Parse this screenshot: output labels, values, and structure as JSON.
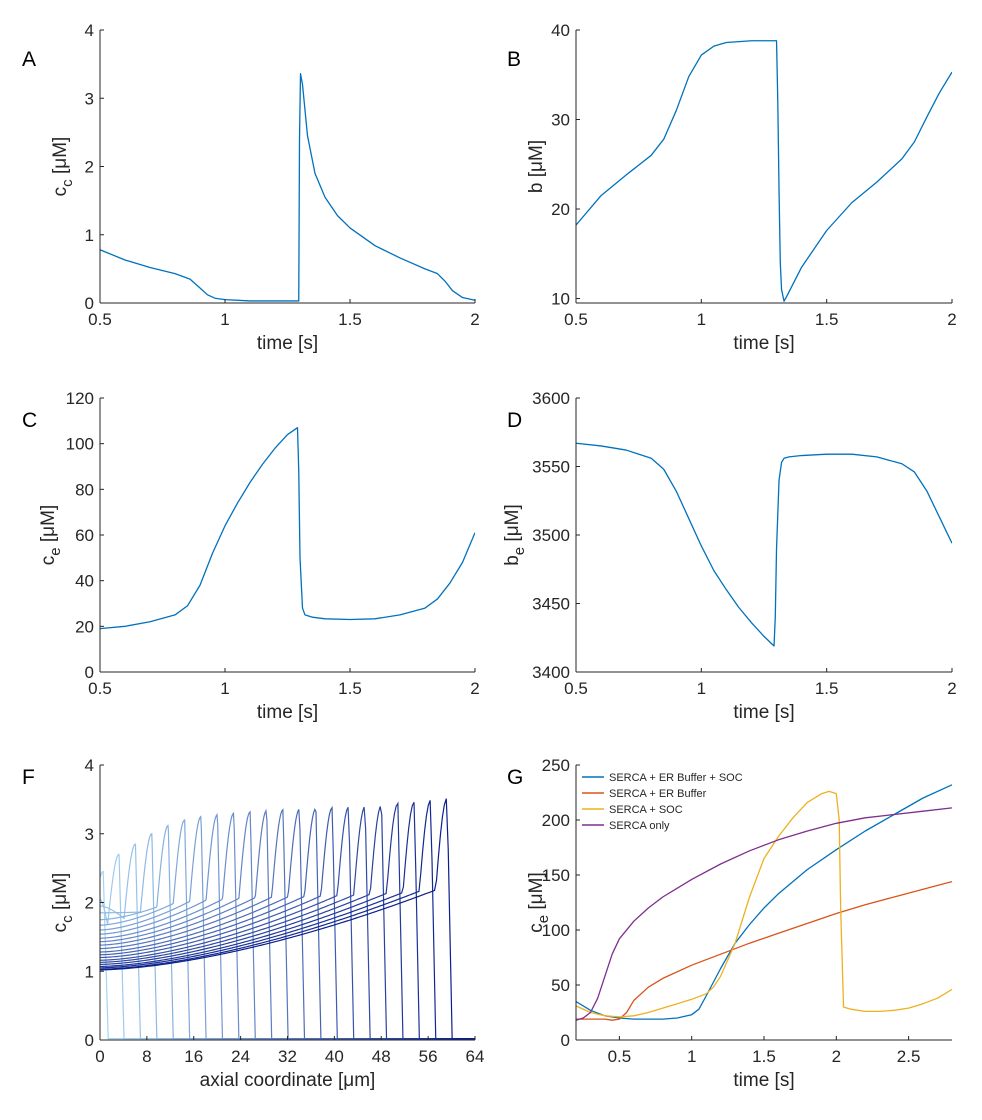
{
  "chart_data": [
    {
      "id": "A",
      "type": "line",
      "panel_label": "A",
      "xlabel": "time [s]",
      "ylabel": "c",
      "ylabel_sub": "c",
      "ylabel_unit": "[μM]",
      "xlim": [
        0.5,
        2
      ],
      "ylim": [
        0,
        4
      ],
      "xticks": [
        0.5,
        1,
        1.5,
        2
      ],
      "xticklabels": [
        "0.5",
        "1",
        "1.5",
        "2"
      ],
      "yticks": [
        0,
        1,
        2,
        3,
        4
      ],
      "yticklabels": [
        "0",
        "1",
        "2",
        "3",
        "4"
      ],
      "series": [
        {
          "color": "#0072BD",
          "x": [
            0.5,
            0.6,
            0.7,
            0.8,
            0.86,
            0.9,
            0.93,
            0.96,
            1.0,
            1.1,
            1.2,
            1.295,
            1.298,
            1.302,
            1.31,
            1.33,
            1.36,
            1.4,
            1.45,
            1.5,
            1.6,
            1.7,
            1.8,
            1.85,
            1.88,
            1.91,
            1.95,
            2.0
          ],
          "y": [
            0.78,
            0.63,
            0.52,
            0.43,
            0.35,
            0.22,
            0.12,
            0.07,
            0.05,
            0.03,
            0.03,
            0.03,
            2.4,
            3.36,
            3.2,
            2.45,
            1.9,
            1.55,
            1.28,
            1.1,
            0.84,
            0.66,
            0.5,
            0.43,
            0.32,
            0.18,
            0.08,
            0.04
          ]
        }
      ]
    },
    {
      "id": "B",
      "type": "line",
      "panel_label": "B",
      "xlabel": "time [s]",
      "ylabel": "b",
      "ylabel_sub": "",
      "ylabel_unit": "[μM]",
      "xlim": [
        0.5,
        2
      ],
      "ylim": [
        9.5,
        40
      ],
      "xticks": [
        0.5,
        1,
        1.5,
        2
      ],
      "xticklabels": [
        "0.5",
        "1",
        "1.5",
        "2"
      ],
      "yticks": [
        10,
        20,
        30,
        40
      ],
      "yticklabels": [
        "10",
        "20",
        "30",
        "40"
      ],
      "series": [
        {
          "color": "#0072BD",
          "x": [
            0.5,
            0.6,
            0.7,
            0.8,
            0.85,
            0.9,
            0.95,
            1.0,
            1.05,
            1.1,
            1.2,
            1.3,
            1.305,
            1.31,
            1.315,
            1.32,
            1.33,
            1.34,
            1.4,
            1.5,
            1.6,
            1.7,
            1.8,
            1.85,
            1.9,
            1.95,
            2.0
          ],
          "y": [
            18.2,
            21.5,
            23.8,
            26.0,
            27.8,
            31.0,
            34.8,
            37.2,
            38.2,
            38.6,
            38.8,
            38.8,
            32.0,
            22.0,
            14.0,
            11.0,
            9.7,
            10.2,
            13.5,
            17.6,
            20.7,
            23.0,
            25.6,
            27.5,
            30.3,
            33.0,
            35.3
          ]
        }
      ]
    },
    {
      "id": "C",
      "type": "line",
      "panel_label": "C",
      "xlabel": "time [s]",
      "ylabel": "c",
      "ylabel_sub": "e",
      "ylabel_unit": "[μM]",
      "xlim": [
        0.5,
        2
      ],
      "ylim": [
        0,
        120
      ],
      "xticks": [
        0.5,
        1,
        1.5,
        2
      ],
      "xticklabels": [
        "0.5",
        "1",
        "1.5",
        "2"
      ],
      "yticks": [
        0,
        20,
        40,
        60,
        80,
        100,
        120
      ],
      "yticklabels": [
        "0",
        "20",
        "40",
        "60",
        "80",
        "100",
        "120"
      ],
      "series": [
        {
          "color": "#0072BD",
          "x": [
            0.5,
            0.6,
            0.7,
            0.8,
            0.85,
            0.9,
            0.95,
            1.0,
            1.05,
            1.1,
            1.15,
            1.2,
            1.25,
            1.29,
            1.295,
            1.3,
            1.31,
            1.32,
            1.35,
            1.4,
            1.5,
            1.6,
            1.7,
            1.8,
            1.85,
            1.9,
            1.95,
            2.0
          ],
          "y": [
            19,
            20,
            22,
            25,
            29,
            38,
            52,
            64,
            74,
            83,
            91,
            98,
            104,
            107,
            88,
            50,
            28,
            25,
            24,
            23.3,
            23,
            23.3,
            25,
            28,
            32,
            39,
            48,
            61
          ]
        }
      ]
    },
    {
      "id": "D",
      "type": "line",
      "panel_label": "D",
      "xlabel": "time [s]",
      "ylabel": "b",
      "ylabel_sub": "e",
      "ylabel_unit": "[μM]",
      "xlim": [
        0.5,
        2
      ],
      "ylim": [
        3400,
        3600
      ],
      "xticks": [
        0.5,
        1,
        1.5,
        2
      ],
      "xticklabels": [
        "0.5",
        "1",
        "1.5",
        "2"
      ],
      "yticks": [
        3400,
        3450,
        3500,
        3550,
        3600
      ],
      "yticklabels": [
        "3400",
        "3450",
        "3500",
        "3550",
        "3600"
      ],
      "series": [
        {
          "color": "#0072BD",
          "x": [
            0.5,
            0.6,
            0.7,
            0.8,
            0.85,
            0.9,
            0.95,
            1.0,
            1.05,
            1.1,
            1.15,
            1.2,
            1.25,
            1.29,
            1.295,
            1.3,
            1.31,
            1.32,
            1.33,
            1.35,
            1.4,
            1.5,
            1.6,
            1.7,
            1.8,
            1.85,
            1.9,
            1.95,
            2.0
          ],
          "y": [
            3567,
            3565,
            3562,
            3556,
            3548,
            3532,
            3512,
            3492,
            3474,
            3460,
            3447,
            3436,
            3426,
            3419,
            3440,
            3490,
            3540,
            3553,
            3556,
            3557,
            3558,
            3559,
            3559,
            3557,
            3552,
            3546,
            3532,
            3513,
            3494
          ]
        }
      ]
    },
    {
      "id": "F",
      "type": "line",
      "panel_label": "F",
      "xlabel": "axial coordinate [μm]",
      "ylabel": "c",
      "ylabel_sub": "c",
      "ylabel_unit": "[μM]",
      "xlim": [
        0,
        64
      ],
      "ylim": [
        0,
        4
      ],
      "xticks": [
        0,
        8,
        16,
        24,
        32,
        40,
        48,
        56,
        64
      ],
      "xticklabels": [
        "0",
        "8",
        "16",
        "24",
        "32",
        "40",
        "48",
        "56",
        "64"
      ],
      "yticks": [
        0,
        1,
        2,
        3,
        4
      ],
      "yticklabels": [
        "0",
        "1",
        "2",
        "3",
        "4"
      ],
      "color_start": "#a6d3f2",
      "color_end": "#0b1f8c",
      "wavefronts": {
        "front_x": [
          0.8,
          3.5,
          6.3,
          9.1,
          11.9,
          14.7,
          17.5,
          20.3,
          23.1,
          25.9,
          28.7,
          31.5,
          34.3,
          37.1,
          39.9,
          42.7,
          45.5,
          48.3,
          51.1,
          53.9,
          56.7,
          59.5
        ],
        "peak_c": [
          2.45,
          2.7,
          2.85,
          3.0,
          3.12,
          3.2,
          3.25,
          3.28,
          3.3,
          3.32,
          3.34,
          3.35,
          3.36,
          3.37,
          3.38,
          3.39,
          3.4,
          3.42,
          3.44,
          3.46,
          3.49,
          3.52
        ],
        "base_c_at_0": [
          2.2,
          2.05,
          1.95,
          1.85,
          1.75,
          1.67,
          1.6,
          1.54,
          1.48,
          1.43,
          1.38,
          1.33,
          1.28,
          1.24,
          1.2,
          1.16,
          1.13,
          1.1,
          1.07,
          1.05,
          1.03,
          1.02
        ]
      }
    },
    {
      "id": "G",
      "type": "line",
      "panel_label": "G",
      "xlabel": "time [s]",
      "ylabel": "c",
      "ylabel_sub": "e",
      "ylabel_unit": "[μM]",
      "xlim": [
        0.2,
        2.8
      ],
      "ylim": [
        0,
        250
      ],
      "xticks": [
        0.5,
        1,
        1.5,
        2,
        2.5
      ],
      "xticklabels": [
        "0.5",
        "1",
        "1.5",
        "2",
        "2.5"
      ],
      "yticks": [
        0,
        50,
        100,
        150,
        200,
        250
      ],
      "yticklabels": [
        "0",
        "50",
        "100",
        "150",
        "200",
        "250"
      ],
      "legend_location": "top-left",
      "series": [
        {
          "name": "SERCA + ER Buffer + SOC",
          "color": "#0072BD",
          "x": [
            0.2,
            0.3,
            0.4,
            0.5,
            0.6,
            0.7,
            0.8,
            0.9,
            1.0,
            1.05,
            1.1,
            1.2,
            1.3,
            1.4,
            1.5,
            1.6,
            1.8,
            2.0,
            2.2,
            2.4,
            2.6,
            2.8
          ],
          "y": [
            35,
            27,
            22,
            20,
            19,
            19,
            19,
            20,
            23,
            28,
            40,
            65,
            88,
            105,
            120,
            133,
            155,
            173,
            190,
            205,
            220,
            232
          ]
        },
        {
          "name": "SERCA + ER Buffer",
          "color": "#D95319",
          "x": [
            0.2,
            0.3,
            0.4,
            0.45,
            0.5,
            0.55,
            0.6,
            0.7,
            0.8,
            1.0,
            1.2,
            1.4,
            1.6,
            1.8,
            2.0,
            2.2,
            2.4,
            2.6,
            2.8
          ],
          "y": [
            19,
            19,
            19,
            18,
            19,
            25,
            36,
            48,
            56,
            68,
            78,
            88,
            97,
            106,
            115,
            123,
            130,
            137,
            144
          ]
        },
        {
          "name": "SERCA + SOC",
          "color": "#EDB120",
          "x": [
            0.2,
            0.3,
            0.4,
            0.5,
            0.6,
            0.7,
            0.8,
            0.9,
            1.0,
            1.1,
            1.15,
            1.2,
            1.3,
            1.4,
            1.5,
            1.6,
            1.7,
            1.8,
            1.9,
            1.95,
            2.0,
            2.02,
            2.03,
            2.05,
            2.1,
            2.2,
            2.3,
            2.4,
            2.5,
            2.6,
            2.7,
            2.8
          ],
          "y": [
            31,
            25,
            22,
            21,
            22,
            25,
            29,
            33,
            37,
            42,
            48,
            58,
            88,
            130,
            165,
            185,
            202,
            216,
            224,
            226,
            224,
            200,
            120,
            30,
            28,
            26,
            26,
            27,
            29,
            33,
            38,
            46
          ]
        },
        {
          "name": "SERCA only",
          "color": "#7E2F8E",
          "x": [
            0.2,
            0.25,
            0.3,
            0.35,
            0.4,
            0.45,
            0.5,
            0.6,
            0.7,
            0.8,
            1.0,
            1.2,
            1.4,
            1.6,
            1.8,
            2.0,
            2.2,
            2.4,
            2.6,
            2.8
          ],
          "y": [
            18,
            20,
            25,
            38,
            58,
            78,
            92,
            108,
            120,
            130,
            146,
            160,
            172,
            182,
            190,
            197,
            202,
            205,
            208,
            211
          ]
        }
      ]
    }
  ]
}
